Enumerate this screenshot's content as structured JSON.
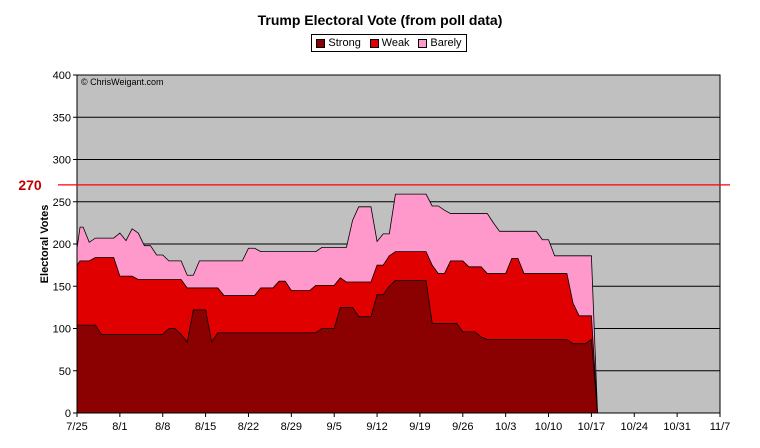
{
  "chart_data": {
    "type": "area",
    "title": "Trump Electoral Vote (from poll data)",
    "xlabel": "",
    "ylabel": "Electoral Votes",
    "watermark": "© ChrisWeigant.com",
    "ylim": [
      0,
      400
    ],
    "yticks": [
      0,
      50,
      100,
      150,
      200,
      250,
      300,
      350,
      400
    ],
    "x_start": "7/25",
    "x_end": "11/7",
    "xticks": [
      {
        "label": "7/25",
        "day": 0
      },
      {
        "label": "8/1",
        "day": 7
      },
      {
        "label": "8/8",
        "day": 14
      },
      {
        "label": "8/15",
        "day": 21
      },
      {
        "label": "8/22",
        "day": 28
      },
      {
        "label": "8/29",
        "day": 35
      },
      {
        "label": "9/5",
        "day": 42
      },
      {
        "label": "9/12",
        "day": 49
      },
      {
        "label": "9/19",
        "day": 56
      },
      {
        "label": "9/26",
        "day": 63
      },
      {
        "label": "10/3",
        "day": 70
      },
      {
        "label": "10/10",
        "day": 77
      },
      {
        "label": "10/17",
        "day": 84
      },
      {
        "label": "10/24",
        "day": 91
      },
      {
        "label": "10/31",
        "day": 98
      },
      {
        "label": "11/7",
        "day": 105
      }
    ],
    "reference_line": {
      "label": "270",
      "value": 270,
      "color": "#ff0000"
    },
    "colors": {
      "strong": "#8b0000",
      "weak": "#e00000",
      "barely": "#ff99cc",
      "plot_bg": "#c0c0c0"
    },
    "legend_placement": "top-center",
    "grid": true,
    "series": [
      {
        "name": "Strong",
        "points": [
          [
            0,
            104
          ],
          [
            0.5,
            104
          ],
          [
            1,
            104
          ],
          [
            2,
            104
          ],
          [
            3,
            104
          ],
          [
            4,
            93
          ],
          [
            5,
            93
          ],
          [
            6,
            93
          ],
          [
            7,
            93
          ],
          [
            8,
            93
          ],
          [
            9,
            93
          ],
          [
            10,
            93
          ],
          [
            11,
            93
          ],
          [
            12,
            93
          ],
          [
            13,
            93
          ],
          [
            14,
            93
          ],
          [
            15,
            100
          ],
          [
            16,
            100
          ],
          [
            17,
            93
          ],
          [
            18,
            84
          ],
          [
            19,
            122
          ],
          [
            20,
            122
          ],
          [
            21,
            122
          ],
          [
            22,
            84
          ],
          [
            23,
            95
          ],
          [
            24,
            95
          ],
          [
            25,
            95
          ],
          [
            26,
            95
          ],
          [
            27,
            95
          ],
          [
            28,
            95
          ],
          [
            29,
            95
          ],
          [
            30,
            95
          ],
          [
            31,
            95
          ],
          [
            32,
            95
          ],
          [
            33,
            95
          ],
          [
            34,
            95
          ],
          [
            35,
            95
          ],
          [
            36,
            95
          ],
          [
            37,
            95
          ],
          [
            38,
            95
          ],
          [
            39,
            95
          ],
          [
            40,
            100
          ],
          [
            41,
            100
          ],
          [
            42,
            100
          ],
          [
            43,
            125
          ],
          [
            44,
            125
          ],
          [
            45,
            125
          ],
          [
            46,
            114
          ],
          [
            47,
            114
          ],
          [
            48,
            114
          ],
          [
            49,
            140
          ],
          [
            50,
            140
          ],
          [
            51,
            150
          ],
          [
            52,
            157
          ],
          [
            53,
            157
          ],
          [
            54,
            157
          ],
          [
            55,
            157
          ],
          [
            56,
            157
          ],
          [
            57,
            157
          ],
          [
            58,
            106
          ],
          [
            59,
            106
          ],
          [
            60,
            106
          ],
          [
            61,
            106
          ],
          [
            62,
            106
          ],
          [
            63,
            96
          ],
          [
            64,
            96
          ],
          [
            65,
            96
          ],
          [
            66,
            90
          ],
          [
            67,
            87
          ],
          [
            68,
            87
          ],
          [
            69,
            87
          ],
          [
            70,
            87
          ],
          [
            71,
            87
          ],
          [
            72,
            87
          ],
          [
            73,
            87
          ],
          [
            74,
            87
          ],
          [
            75,
            87
          ],
          [
            76,
            87
          ],
          [
            77,
            87
          ],
          [
            78,
            87
          ],
          [
            79,
            87
          ],
          [
            80,
            87
          ],
          [
            81,
            82
          ],
          [
            82,
            82
          ],
          [
            83,
            82
          ],
          [
            84,
            87
          ],
          [
            85,
            0
          ]
        ]
      },
      {
        "name": "Weak",
        "points": [
          [
            0,
            175
          ],
          [
            0.5,
            180
          ],
          [
            1,
            180
          ],
          [
            2,
            180
          ],
          [
            3,
            184
          ],
          [
            4,
            184
          ],
          [
            5,
            184
          ],
          [
            6,
            184
          ],
          [
            7,
            162
          ],
          [
            8,
            162
          ],
          [
            9,
            162
          ],
          [
            10,
            158
          ],
          [
            11,
            158
          ],
          [
            12,
            158
          ],
          [
            13,
            158
          ],
          [
            14,
            158
          ],
          [
            15,
            158
          ],
          [
            16,
            158
          ],
          [
            17,
            158
          ],
          [
            18,
            148
          ],
          [
            19,
            148
          ],
          [
            20,
            148
          ],
          [
            21,
            148
          ],
          [
            22,
            148
          ],
          [
            23,
            148
          ],
          [
            24,
            139
          ],
          [
            25,
            139
          ],
          [
            26,
            139
          ],
          [
            27,
            139
          ],
          [
            28,
            139
          ],
          [
            29,
            139
          ],
          [
            30,
            148
          ],
          [
            31,
            148
          ],
          [
            32,
            148
          ],
          [
            33,
            156
          ],
          [
            34,
            156
          ],
          [
            35,
            145
          ],
          [
            36,
            145
          ],
          [
            37,
            145
          ],
          [
            38,
            145
          ],
          [
            39,
            151
          ],
          [
            40,
            151
          ],
          [
            41,
            151
          ],
          [
            42,
            151
          ],
          [
            43,
            160
          ],
          [
            44,
            155
          ],
          [
            45,
            155
          ],
          [
            46,
            155
          ],
          [
            47,
            155
          ],
          [
            48,
            155
          ],
          [
            49,
            175
          ],
          [
            50,
            175
          ],
          [
            51,
            186
          ],
          [
            52,
            191
          ],
          [
            53,
            191
          ],
          [
            54,
            191
          ],
          [
            55,
            191
          ],
          [
            56,
            191
          ],
          [
            57,
            191
          ],
          [
            58,
            175
          ],
          [
            59,
            165
          ],
          [
            60,
            165
          ],
          [
            61,
            180
          ],
          [
            62,
            180
          ],
          [
            63,
            180
          ],
          [
            64,
            173
          ],
          [
            65,
            173
          ],
          [
            66,
            173
          ],
          [
            67,
            165
          ],
          [
            68,
            165
          ],
          [
            69,
            165
          ],
          [
            70,
            165
          ],
          [
            71,
            183
          ],
          [
            72,
            183
          ],
          [
            73,
            165
          ],
          [
            74,
            165
          ],
          [
            75,
            165
          ],
          [
            76,
            165
          ],
          [
            77,
            165
          ],
          [
            78,
            165
          ],
          [
            79,
            165
          ],
          [
            80,
            165
          ],
          [
            81,
            130
          ],
          [
            82,
            115
          ],
          [
            83,
            115
          ],
          [
            84,
            115
          ],
          [
            85,
            0
          ]
        ]
      },
      {
        "name": "Barely",
        "points": [
          [
            0,
            195
          ],
          [
            0.5,
            220
          ],
          [
            1,
            220
          ],
          [
            2,
            202
          ],
          [
            3,
            207
          ],
          [
            4,
            207
          ],
          [
            5,
            207
          ],
          [
            6,
            207
          ],
          [
            7,
            213
          ],
          [
            8,
            204
          ],
          [
            9,
            218
          ],
          [
            10,
            213
          ],
          [
            11,
            198
          ],
          [
            12,
            198
          ],
          [
            13,
            187
          ],
          [
            14,
            187
          ],
          [
            15,
            180
          ],
          [
            16,
            180
          ],
          [
            17,
            180
          ],
          [
            18,
            163
          ],
          [
            19,
            163
          ],
          [
            20,
            180
          ],
          [
            21,
            180
          ],
          [
            22,
            180
          ],
          [
            23,
            180
          ],
          [
            24,
            180
          ],
          [
            25,
            180
          ],
          [
            26,
            180
          ],
          [
            27,
            180
          ],
          [
            28,
            195
          ],
          [
            29,
            195
          ],
          [
            30,
            191
          ],
          [
            31,
            191
          ],
          [
            32,
            191
          ],
          [
            33,
            191
          ],
          [
            34,
            191
          ],
          [
            35,
            191
          ],
          [
            36,
            191
          ],
          [
            37,
            191
          ],
          [
            38,
            191
          ],
          [
            39,
            191
          ],
          [
            40,
            196
          ],
          [
            41,
            196
          ],
          [
            42,
            196
          ],
          [
            43,
            196
          ],
          [
            44,
            196
          ],
          [
            45,
            228
          ],
          [
            46,
            244
          ],
          [
            47,
            244
          ],
          [
            48,
            244
          ],
          [
            49,
            203
          ],
          [
            50,
            212
          ],
          [
            51,
            212
          ],
          [
            52,
            259
          ],
          [
            53,
            259
          ],
          [
            54,
            259
          ],
          [
            55,
            259
          ],
          [
            56,
            259
          ],
          [
            57,
            259
          ],
          [
            58,
            245
          ],
          [
            59,
            245
          ],
          [
            60,
            240
          ],
          [
            61,
            236
          ],
          [
            62,
            236
          ],
          [
            63,
            236
          ],
          [
            64,
            236
          ],
          [
            65,
            236
          ],
          [
            66,
            236
          ],
          [
            67,
            236
          ],
          [
            68,
            225
          ],
          [
            69,
            215
          ],
          [
            70,
            215
          ],
          [
            71,
            215
          ],
          [
            72,
            215
          ],
          [
            73,
            215
          ],
          [
            74,
            215
          ],
          [
            75,
            215
          ],
          [
            76,
            205
          ],
          [
            77,
            205
          ],
          [
            78,
            186
          ],
          [
            79,
            186
          ],
          [
            80,
            186
          ],
          [
            81,
            186
          ],
          [
            82,
            186
          ],
          [
            83,
            186
          ],
          [
            84,
            186
          ],
          [
            85,
            0
          ]
        ]
      }
    ]
  }
}
